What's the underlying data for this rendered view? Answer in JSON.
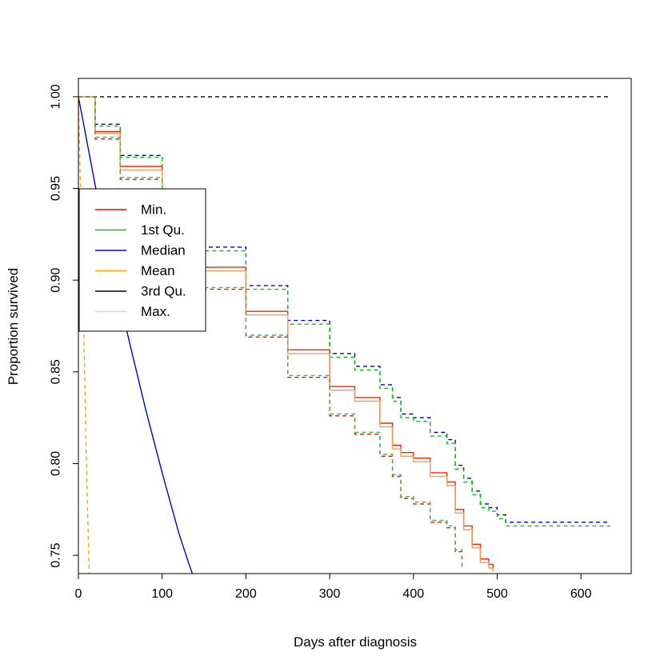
{
  "chart_data": {
    "type": "line",
    "title": "",
    "xlabel": "Days after diagnosis",
    "ylabel": "Proportion survived",
    "xlim": [
      0,
      660
    ],
    "ylim": [
      0.74,
      1.01
    ],
    "x_ticks": [
      0,
      100,
      200,
      300,
      400,
      500,
      600
    ],
    "x_tick_labels": [
      "0",
      "100",
      "200",
      "300",
      "400",
      "500",
      "600"
    ],
    "y_ticks": [
      0.75,
      0.8,
      0.85,
      0.9,
      0.95,
      1.0
    ],
    "y_tick_labels": [
      "0.75",
      "0.80",
      "0.85",
      "0.90",
      "0.95",
      "1.00"
    ],
    "grid": false,
    "legend_position": "left",
    "legend": [
      {
        "name": "Min.",
        "color": "#ff0000"
      },
      {
        "name": "1st Qu.",
        "color": "#00cc00"
      },
      {
        "name": "Median",
        "color": "#0000ff"
      },
      {
        "name": "Mean",
        "color": "#ffa500"
      },
      {
        "name": "3rd Qu.",
        "color": "#000000"
      },
      {
        "name": "Max.",
        "color": "#ffc0cb"
      }
    ],
    "series": [
      {
        "color": "#000000",
        "style": "dashed",
        "step": false,
        "x": [
          0,
          635
        ],
        "y": [
          1.0,
          1.0
        ]
      },
      {
        "color": "#0000cc",
        "style": "dashed",
        "step": true,
        "x": [
          0,
          20,
          50,
          100,
          150,
          200,
          250,
          300,
          330,
          360,
          375,
          385,
          400,
          420,
          440,
          450,
          460,
          470,
          480,
          490,
          500,
          510,
          635
        ],
        "y": [
          1.0,
          0.985,
          0.968,
          0.944,
          0.918,
          0.897,
          0.878,
          0.86,
          0.853,
          0.843,
          0.836,
          0.827,
          0.825,
          0.817,
          0.813,
          0.799,
          0.792,
          0.785,
          0.778,
          0.776,
          0.772,
          0.768,
          0.768
        ]
      },
      {
        "color": "#00cc00",
        "style": "dashed",
        "step": true,
        "x": [
          0,
          20,
          50,
          100,
          150,
          200,
          250,
          300,
          330,
          360,
          375,
          385,
          400,
          420,
          440,
          450,
          460,
          470,
          480,
          490,
          500,
          510,
          635
        ],
        "y": [
          1.0,
          0.984,
          0.967,
          0.942,
          0.916,
          0.895,
          0.876,
          0.858,
          0.851,
          0.841,
          0.834,
          0.825,
          0.823,
          0.815,
          0.811,
          0.797,
          0.79,
          0.783,
          0.776,
          0.774,
          0.77,
          0.766,
          0.766
        ]
      },
      {
        "color": "#ff2200",
        "style": "solid",
        "step": true,
        "x": [
          0,
          20,
          50,
          100,
          150,
          200,
          250,
          300,
          330,
          360,
          375,
          385,
          400,
          420,
          440,
          450,
          460,
          470,
          480,
          490,
          495
        ],
        "y": [
          1.0,
          0.981,
          0.962,
          0.937,
          0.907,
          0.883,
          0.862,
          0.842,
          0.836,
          0.822,
          0.81,
          0.806,
          0.803,
          0.795,
          0.79,
          0.775,
          0.766,
          0.756,
          0.748,
          0.745,
          0.742
        ]
      },
      {
        "color": "#e8a060",
        "style": "solid",
        "step": true,
        "x": [
          0,
          20,
          50,
          100,
          150,
          200,
          250,
          300,
          330,
          360,
          375,
          385,
          400,
          420,
          440,
          450,
          460,
          470,
          480,
          490,
          495
        ],
        "y": [
          1.0,
          0.98,
          0.96,
          0.935,
          0.905,
          0.881,
          0.86,
          0.84,
          0.834,
          0.82,
          0.808,
          0.804,
          0.801,
          0.793,
          0.788,
          0.773,
          0.764,
          0.754,
          0.746,
          0.743,
          0.741
        ]
      },
      {
        "color": "#cc2200",
        "style": "dashed",
        "step": true,
        "x": [
          0,
          20,
          50,
          100,
          150,
          200,
          250,
          300,
          330,
          360,
          375,
          385,
          400,
          420,
          440,
          450,
          458
        ],
        "y": [
          1.0,
          0.977,
          0.955,
          0.925,
          0.895,
          0.869,
          0.847,
          0.826,
          0.816,
          0.804,
          0.793,
          0.781,
          0.778,
          0.768,
          0.765,
          0.752,
          0.743
        ]
      },
      {
        "color": "#4caf50",
        "style": "dashed",
        "step": true,
        "x": [
          0,
          20,
          50,
          100,
          150,
          200,
          250,
          300,
          330,
          360,
          375,
          385,
          400,
          420,
          440,
          450,
          458
        ],
        "y": [
          1.0,
          0.978,
          0.956,
          0.926,
          0.896,
          0.87,
          0.848,
          0.827,
          0.817,
          0.805,
          0.794,
          0.782,
          0.779,
          0.769,
          0.766,
          0.753,
          0.744
        ]
      },
      {
        "color": "#0000dd",
        "style": "solid",
        "step": false,
        "x": [
          0,
          20,
          40,
          60,
          80,
          100,
          120,
          130,
          136
        ],
        "y": [
          1.0,
          0.952,
          0.908,
          0.868,
          0.83,
          0.795,
          0.762,
          0.748,
          0.74
        ]
      },
      {
        "color": "#ffa500",
        "style": "dashed",
        "step": false,
        "x": [
          0,
          3,
          7,
          10,
          13
        ],
        "y": [
          1.0,
          0.94,
          0.86,
          0.79,
          0.74
        ]
      }
    ]
  }
}
